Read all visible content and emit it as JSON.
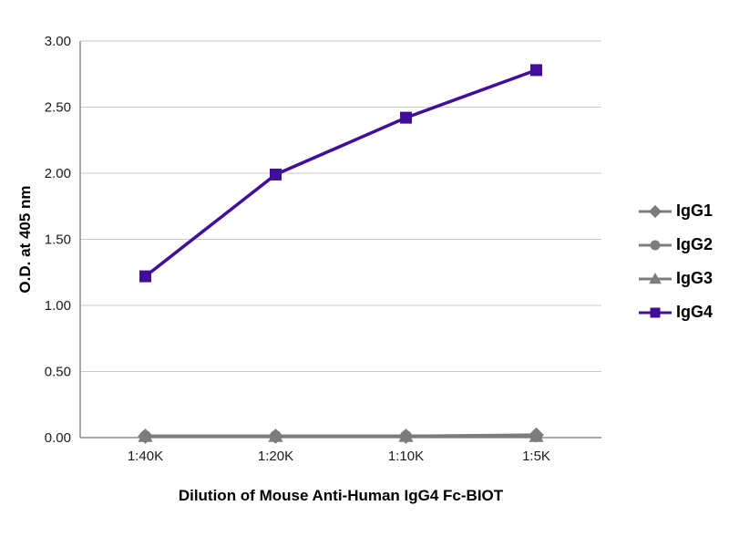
{
  "chart_data": {
    "type": "line",
    "title": "",
    "xlabel": "Dilution of Mouse Anti-Human IgG4 Fc-BIOT",
    "ylabel": "O.D. at 405 nm",
    "categories": [
      "1:40K",
      "1:20K",
      "1:10K",
      "1:5K"
    ],
    "ylim": [
      0,
      3
    ],
    "yticks": [
      0.0,
      0.5,
      1.0,
      1.5,
      2.0,
      2.5,
      3.0
    ],
    "grid": true,
    "legend_position": "right",
    "series": [
      {
        "name": "IgG1",
        "marker": "diamond",
        "color": "#7c7c7c",
        "values": [
          0.01,
          0.01,
          0.01,
          0.02
        ]
      },
      {
        "name": "IgG2",
        "marker": "circle",
        "color": "#7c7c7c",
        "values": [
          0.01,
          0.01,
          0.01,
          0.01
        ]
      },
      {
        "name": "IgG3",
        "marker": "triangle",
        "color": "#7c7c7c",
        "values": [
          0.01,
          0.01,
          0.01,
          0.01
        ]
      },
      {
        "name": "IgG4",
        "marker": "square",
        "color": "#410d9b",
        "values": [
          1.22,
          1.99,
          2.42,
          2.78
        ]
      }
    ]
  }
}
